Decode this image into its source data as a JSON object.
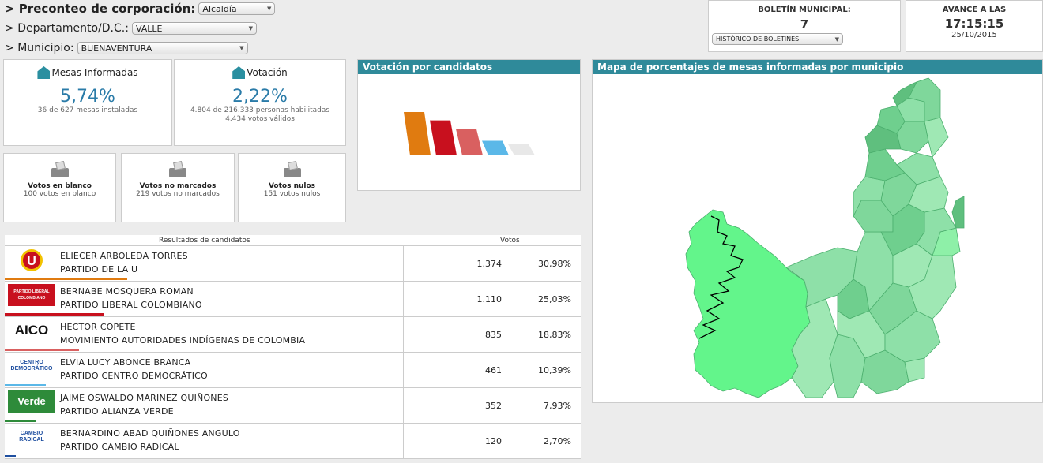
{
  "filters": {
    "corporacion": {
      "label": "Preconteo de corporación:",
      "value": "Alcaldía"
    },
    "departamento": {
      "label": "Departamento/D.C.:",
      "value": "VALLE"
    },
    "municipio": {
      "label": "Municipio:",
      "value": "BUENAVENTURA"
    }
  },
  "boletin": {
    "title": "BOLETÍN MUNICIPAL:",
    "number": "7",
    "historico": "HISTÓRICO DE BOLETINES"
  },
  "avance": {
    "title": "AVANCE A LAS",
    "time": "17:15:15",
    "date": "25/10/2015"
  },
  "mesas": {
    "title": "Mesas Informadas",
    "pct": "5,74%",
    "sub": "36 de 627 mesas instaladas",
    "icon": "mesa-icon"
  },
  "votacion": {
    "title": "Votación",
    "pct": "2,22%",
    "sub1": "4.804 de 216.333 personas habilitadas",
    "sub2": "4.434 votos válidos",
    "icon": "mesa-icon"
  },
  "votos_blanco": {
    "title": "Votos en blanco",
    "sub": "100 votos en blanco"
  },
  "no_marcados": {
    "title": "Votos no marcados",
    "sub": "219 votos no marcados"
  },
  "nulos": {
    "title": "Votos nulos",
    "sub": "151 votos nulos"
  },
  "chart_panel": {
    "title": "Votación por candidatos"
  },
  "map_panel": {
    "title": "Mapa de porcentajes de mesas informadas por municipio"
  },
  "table": {
    "header_candidates": "Resultados de candidatos",
    "header_votes": "Votos"
  },
  "chart_data": {
    "type": "bar",
    "categories": [
      "PARTIDO DE LA U",
      "PARTIDO LIBERAL COLOMBIANO",
      "MOVIMIENTO AUTORIDADES INDÍGENAS DE COLOMBIA",
      "PARTIDO CENTRO DEMOCRÁTICO",
      "PARTIDO ALIANZA VERDE"
    ],
    "values": [
      30.98,
      25.03,
      18.83,
      10.39,
      7.93
    ],
    "colors": [
      "#e07b10",
      "#c8101e",
      "#d96060",
      "#5bb8e8",
      "#e8e8e8"
    ]
  },
  "candidates": [
    {
      "name": "ELIECER ARBOLEDA TORRES",
      "party": "PARTIDO DE LA U",
      "votes": "1.374",
      "pct": "30,98%",
      "share": 30.98,
      "color": "#e07b10",
      "logo_icon": "partido-u-logo"
    },
    {
      "name": "BERNABE MOSQUERA ROMAN",
      "party": "PARTIDO LIBERAL COLOMBIANO",
      "votes": "1.110",
      "pct": "25,03%",
      "share": 25.03,
      "color": "#c8101e",
      "logo_icon": "partido-liberal-logo",
      "logo_text": "PARTIDO LIBERAL COLOMBIANO"
    },
    {
      "name": "HECTOR COPETE",
      "party": "MOVIMIENTO AUTORIDADES INDÍGENAS DE COLOMBIA",
      "votes": "835",
      "pct": "18,83%",
      "share": 18.83,
      "color": "#d96060",
      "logo_icon": "aico-logo",
      "logo_text": "AICO"
    },
    {
      "name": "ELVIA LUCY ABONCE BRANCA",
      "party": "PARTIDO CENTRO DEMOCRÁTICO",
      "votes": "461",
      "pct": "10,39%",
      "share": 10.39,
      "color": "#5bb8e8",
      "logo_icon": "centro-democratico-logo",
      "logo_text": "CENTRO DEMOCRÁTICO"
    },
    {
      "name": "JAIME OSWALDO MARINEZ QUIÑONES",
      "party": "PARTIDO ALIANZA VERDE",
      "votes": "352",
      "pct": "7,93%",
      "share": 7.93,
      "color": "#2e8b3a",
      "logo_icon": "alianza-verde-logo",
      "logo_text": "Verde"
    },
    {
      "name": "BERNARDINO ABAD QUIÑONES ANGULO",
      "party": "PARTIDO CAMBIO RADICAL",
      "votes": "120",
      "pct": "2,70%",
      "share": 2.7,
      "color": "#1f4fa0",
      "logo_icon": "cambio-radical-logo",
      "logo_text": "CAMBIO RADICAL"
    }
  ]
}
